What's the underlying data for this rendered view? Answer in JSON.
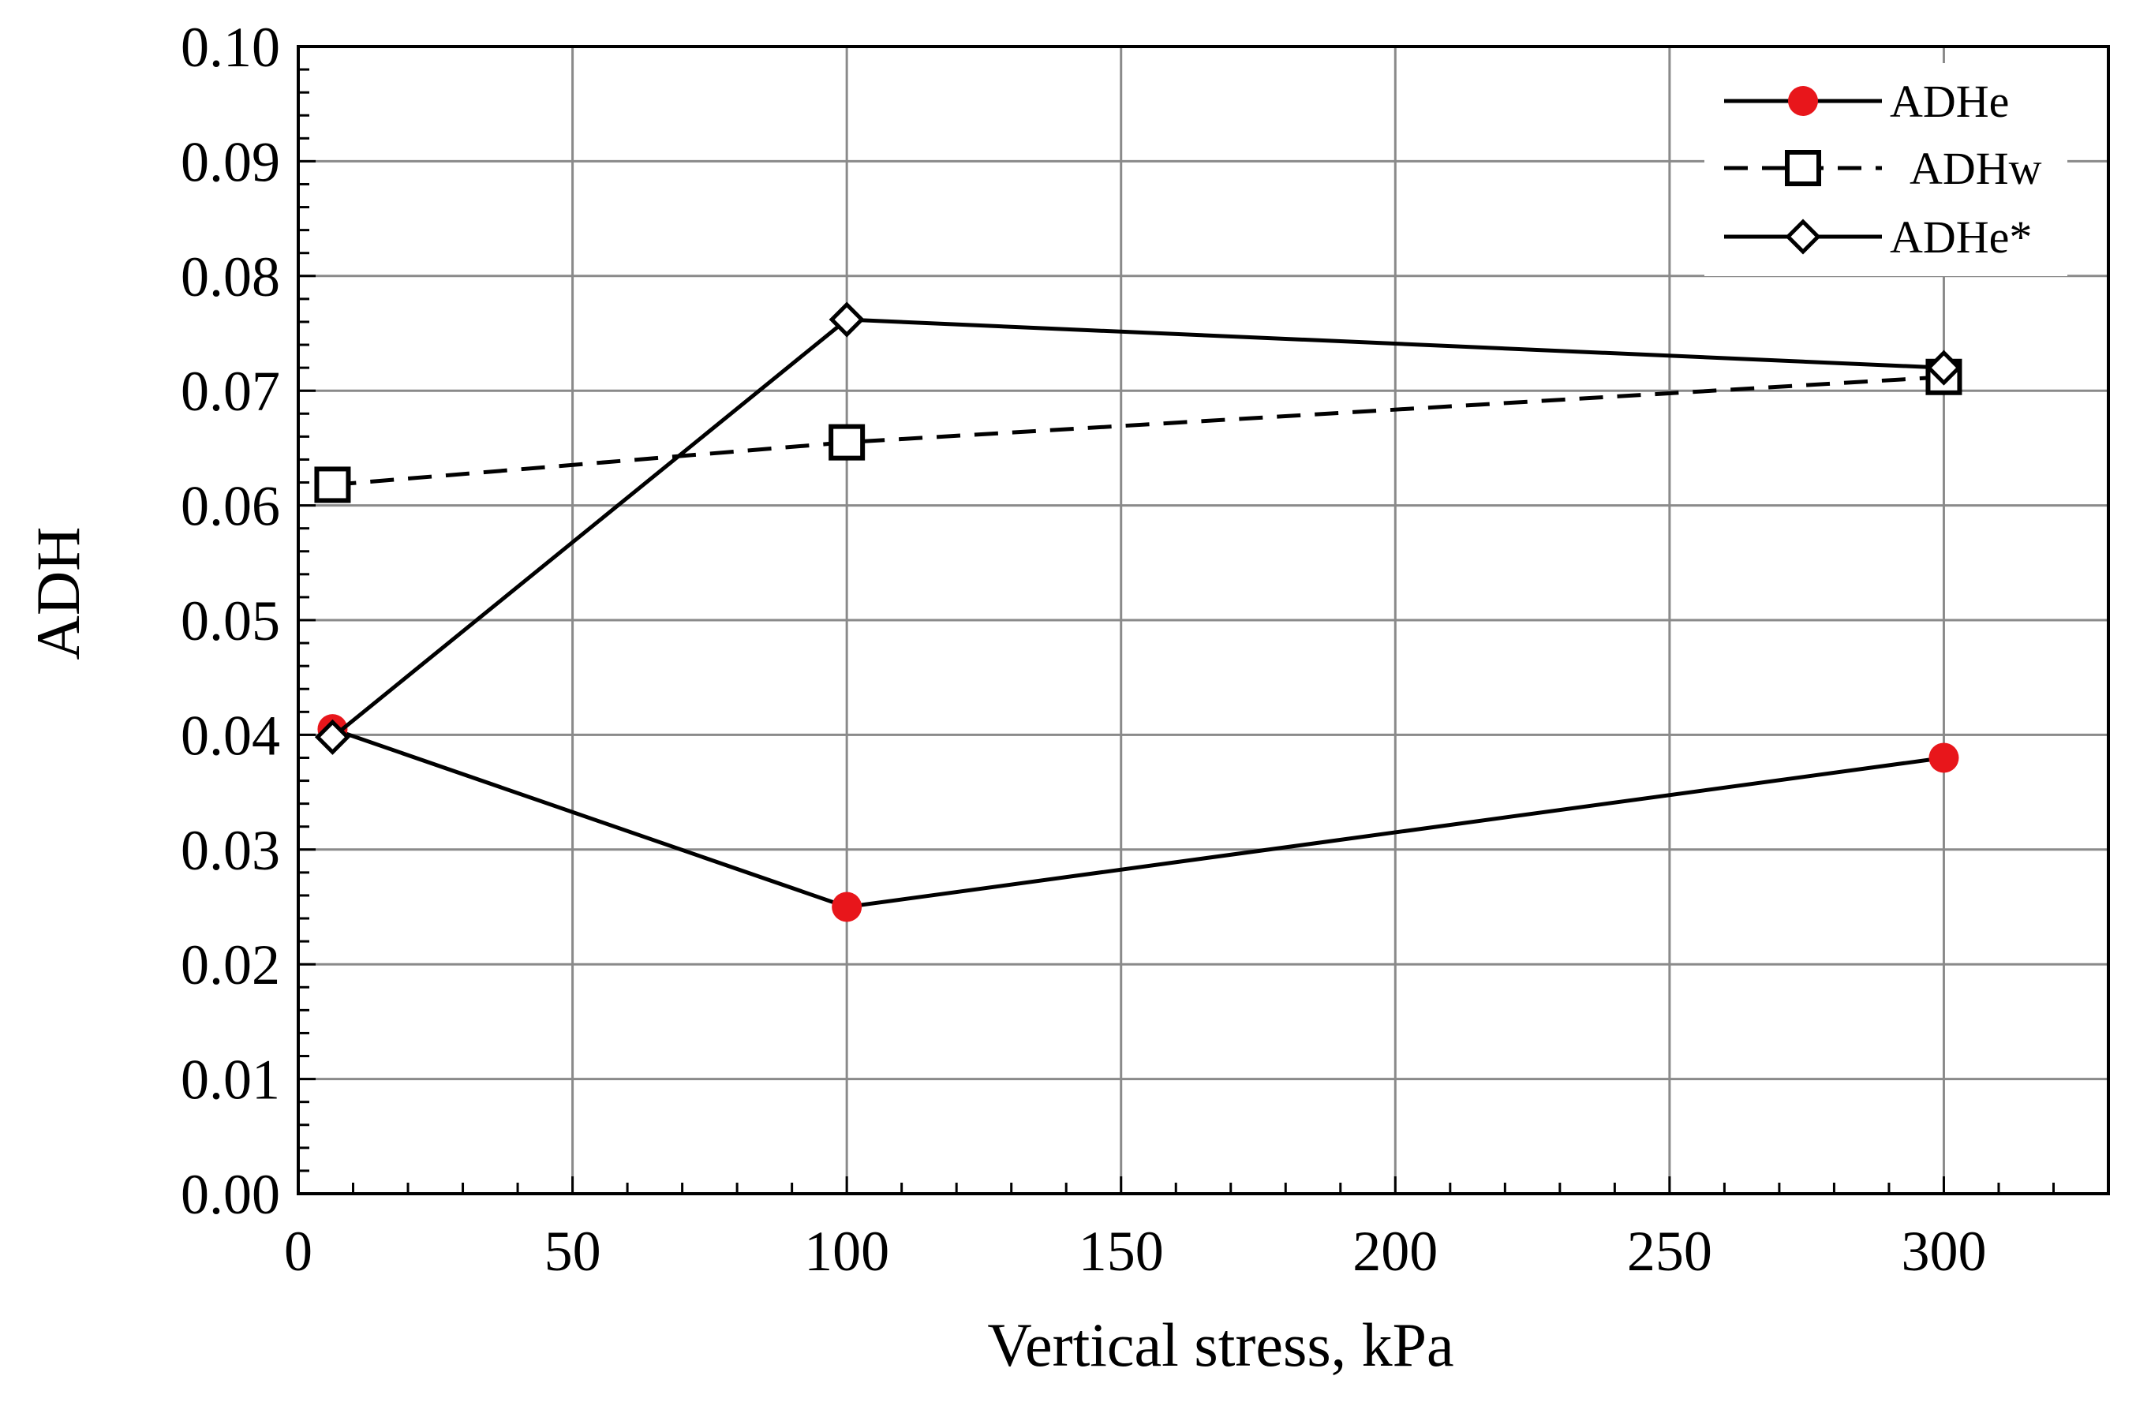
{
  "chart_data": {
    "type": "line",
    "title": "",
    "xlabel": "Vertical stress, kPa",
    "ylabel": "ADH",
    "xlim": [
      0,
      330
    ],
    "ylim": [
      0,
      0.1
    ],
    "grid": true,
    "x_ticks": [
      0,
      50,
      100,
      150,
      200,
      250,
      300
    ],
    "x_tick_labels": [
      "0",
      "50",
      "100",
      "150",
      "200",
      "250",
      "300"
    ],
    "y_ticks": [
      0,
      0.01,
      0.02,
      0.03,
      0.04,
      0.05,
      0.06,
      0.07,
      0.08,
      0.09,
      0.1
    ],
    "y_tick_labels": [
      "0.00",
      "0.01",
      "0.02",
      "0.03",
      "0.04",
      "0.05",
      "0.06",
      "0.07",
      "0.08",
      "0.09",
      "0.10"
    ],
    "legend_position": "top-right",
    "series": [
      {
        "name": "ADHe",
        "legend_label": "ADHe",
        "marker": "filled-circle",
        "marker_color": "#e8161b",
        "line_style": "solid",
        "line_color": "#000000",
        "x": [
          6.25,
          100,
          300
        ],
        "values": [
          0.0405,
          0.025,
          0.038
        ]
      },
      {
        "name": "ADHw",
        "legend_label": "ADHw",
        "marker": "open-square",
        "marker_color": "#000000",
        "line_style": "dashed",
        "line_color": "#000000",
        "x": [
          6.25,
          100,
          300
        ],
        "values": [
          0.0618,
          0.0655,
          0.0712
        ]
      },
      {
        "name": "ADHe*",
        "legend_label": "ADHe*",
        "marker": "open-diamond",
        "marker_color": "#000000",
        "line_style": "solid",
        "line_color": "#000000",
        "x": [
          6.25,
          100,
          300
        ],
        "values": [
          0.0398,
          0.0762,
          0.072
        ]
      }
    ]
  }
}
